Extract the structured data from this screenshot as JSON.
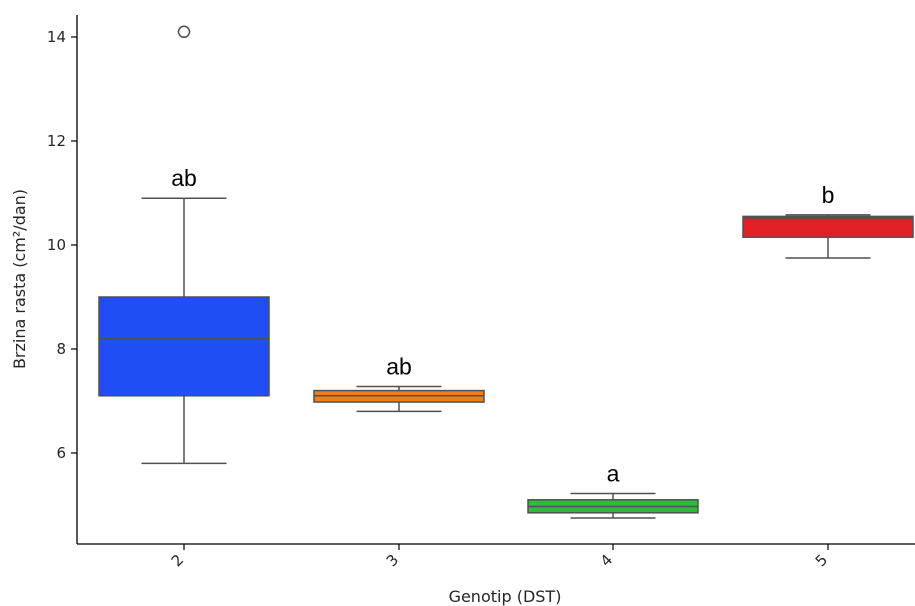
{
  "chart_data": {
    "type": "boxplot",
    "xlabel": "Genotip (DST)",
    "ylabel": "Brzina rasta (cm²/dan)",
    "ylim": [
      4.3,
      14.5
    ],
    "yticks": [
      6,
      8,
      10,
      12,
      14
    ],
    "ytick_labels": [
      "6",
      "8",
      "10",
      "12",
      "14"
    ],
    "grid": false,
    "categories": [
      "2",
      "3",
      "4",
      "5"
    ],
    "boxes": [
      {
        "category": "2",
        "whisker_low": 5.8,
        "q1": 7.1,
        "median": 8.2,
        "q3": 9.0,
        "whisker_high": 10.9,
        "outliers": [
          14.1
        ],
        "color": "#1f4ef5",
        "annotation": "ab"
      },
      {
        "category": "3",
        "whisker_low": 6.8,
        "q1": 6.98,
        "median": 7.1,
        "q3": 7.2,
        "whisker_high": 7.28,
        "outliers": [],
        "color": "#f07f1a",
        "annotation": "ab"
      },
      {
        "category": "4",
        "whisker_low": 4.75,
        "q1": 4.85,
        "median": 4.97,
        "q3": 5.1,
        "whisker_high": 5.22,
        "outliers": [],
        "color": "#2dbb3c",
        "annotation": "a"
      },
      {
        "category": "5",
        "whisker_low": 9.75,
        "q1": 10.15,
        "median": 10.52,
        "q3": 10.55,
        "whisker_high": 10.58,
        "outliers": [],
        "color": "#e01f26",
        "annotation": "b"
      }
    ]
  }
}
